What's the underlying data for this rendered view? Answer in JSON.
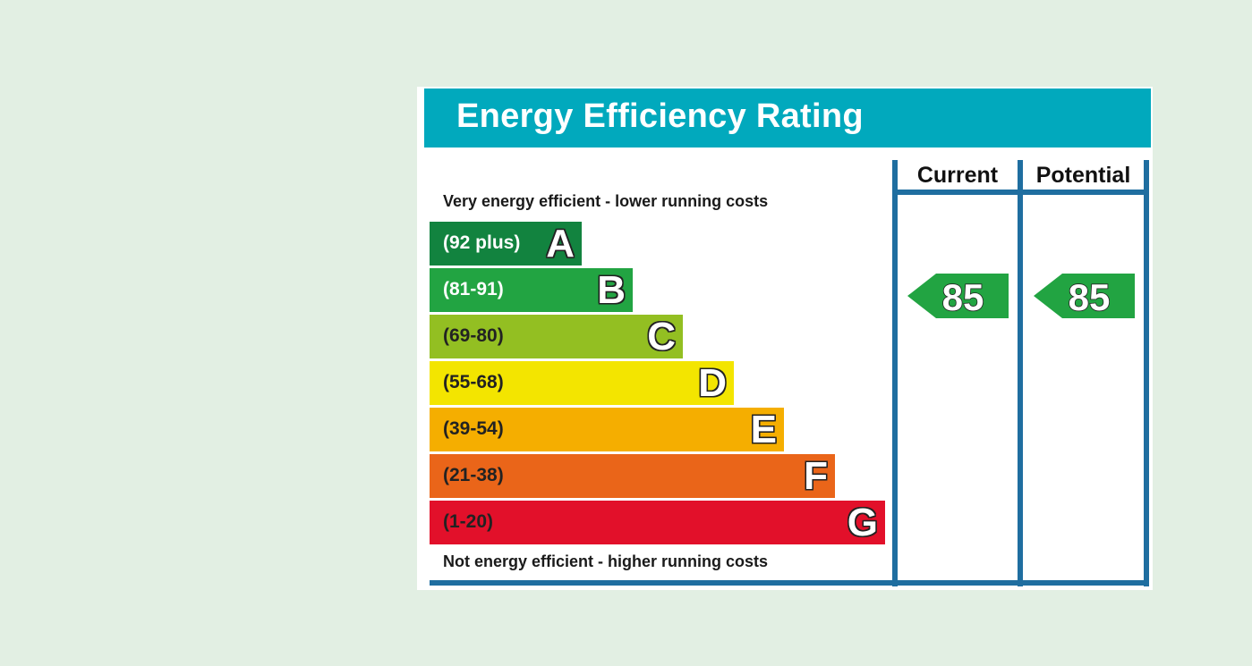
{
  "header": {
    "title": "Energy Efficiency Rating"
  },
  "notes": {
    "top": "Very energy efficient - lower running costs",
    "bottom": "Not energy efficient - higher running costs"
  },
  "columns": {
    "current": "Current",
    "potential": "Potential"
  },
  "colors": {
    "title_bar": "#01a9bd",
    "frame": "#1f6ea0",
    "background": "#e2efe3"
  },
  "chart_data": {
    "type": "bar",
    "title": "Energy Efficiency Rating",
    "categories": [
      "A",
      "B",
      "C",
      "D",
      "E",
      "F",
      "G"
    ],
    "bands": [
      {
        "letter": "A",
        "range": "(92 plus)",
        "color": "#12833f",
        "text_color": "#ffffff"
      },
      {
        "letter": "B",
        "range": "(81-91)",
        "color": "#22a442",
        "text_color": "#ffffff"
      },
      {
        "letter": "C",
        "range": "(69-80)",
        "color": "#93bf22",
        "text_color": "#222222"
      },
      {
        "letter": "D",
        "range": "(55-68)",
        "color": "#f3e500",
        "text_color": "#222222"
      },
      {
        "letter": "E",
        "range": "(39-54)",
        "color": "#f5ae00",
        "text_color": "#222222"
      },
      {
        "letter": "F",
        "range": "(21-38)",
        "color": "#ea6519",
        "text_color": "#222222"
      },
      {
        "letter": "G",
        "range": "(1-20)",
        "color": "#e2102a",
        "text_color": "#222222"
      }
    ],
    "current": {
      "value": 85,
      "band": "B",
      "color": "#22a442"
    },
    "potential": {
      "value": 85,
      "band": "B",
      "color": "#22a442"
    }
  }
}
